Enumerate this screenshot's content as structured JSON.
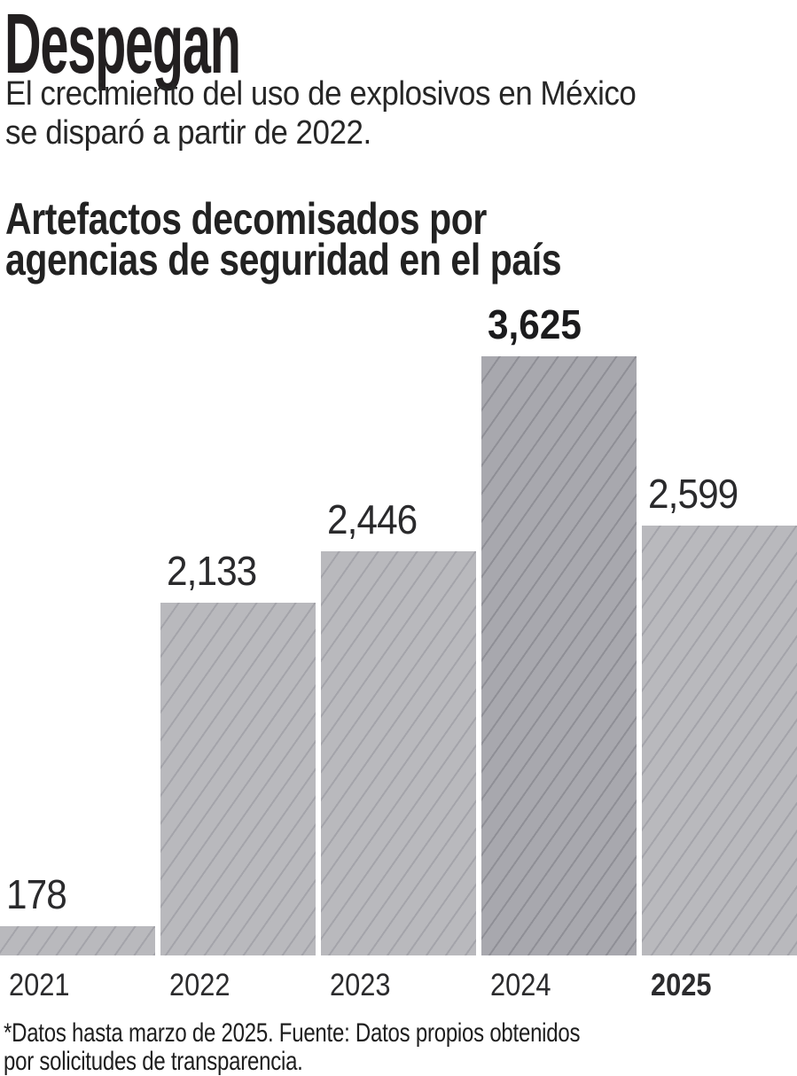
{
  "header": {
    "title": "Despegan",
    "subtitle_lines": [
      "El crecimiento del uso de explosivos en México",
      "se disparó a partir de 2022."
    ]
  },
  "chart_heading_lines": [
    "Artefactos decomisados por",
    "agencias de seguridad en el país"
  ],
  "chart_data": {
    "type": "bar",
    "title": "Artefactos decomisados por agencias de seguridad en el país",
    "categories": [
      "2021",
      "2022",
      "2023",
      "2024",
      "2025"
    ],
    "values": [
      178,
      2133,
      2446,
      3625,
      2599
    ],
    "value_labels": [
      "178",
      "2,133",
      "2,446",
      "3,625",
      "2,599"
    ],
    "highlight_bar_index": 3,
    "bold_year_index": 4,
    "xlabel": "",
    "ylabel": "",
    "ylim": [
      0,
      3625
    ],
    "grid": false,
    "legend": false,
    "bar_color": "#b9b9bd",
    "bar_hatch_color": "#a4a4aa",
    "highlight_bar_color": "#a8a8ae",
    "highlight_hatch_color": "#8f8f96"
  },
  "footnote_lines": [
    "*Datos hasta marzo de 2025. Fuente: Datos propios obtenidos",
    "por solicitudes de transparencia."
  ]
}
